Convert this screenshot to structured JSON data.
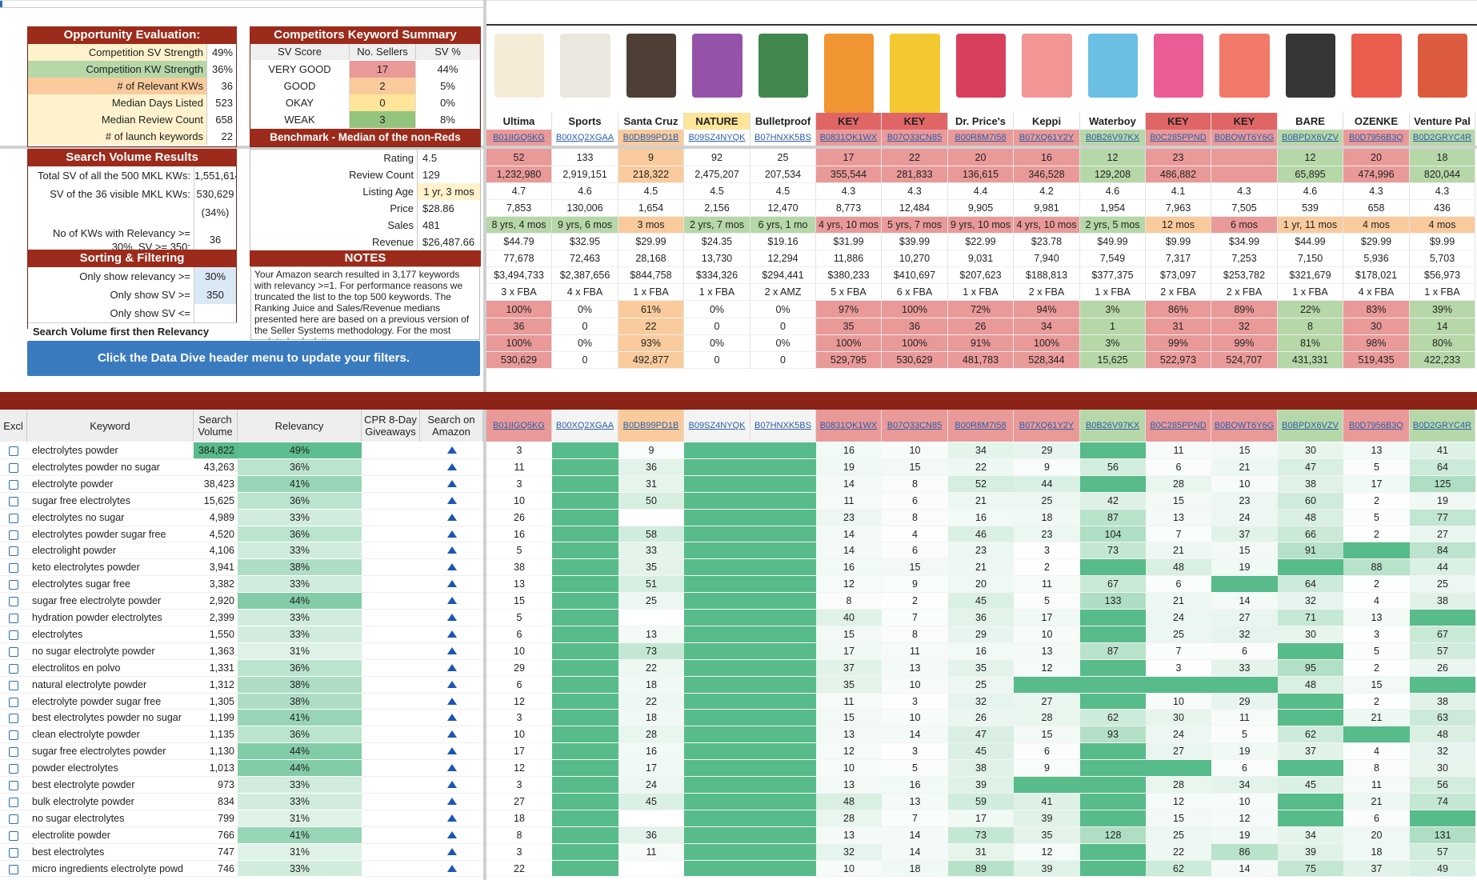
{
  "opportunity": {
    "title": "Opportunity Evaluation:",
    "rows": [
      {
        "label": "Competition SV Strength",
        "value": "49%"
      },
      {
        "label": "Competition KW Strength",
        "value": "36%"
      },
      {
        "label": "# of Relevant KWs",
        "value": "36"
      },
      {
        "label": "Median Days Listed",
        "value": "523"
      },
      {
        "label": "Median Review Count",
        "value": "658"
      },
      {
        "label": "# of launch keywords",
        "value": "22"
      }
    ]
  },
  "competitors_summary": {
    "title": "Competitors Keyword Summary",
    "headers": [
      "SV Score",
      "No. Sellers",
      "SV %"
    ],
    "rows": [
      [
        "VERY GOOD",
        "17",
        "44%"
      ],
      [
        "GOOD",
        "2",
        "5%"
      ],
      [
        "OKAY",
        "0",
        "0%"
      ],
      [
        "WEAK",
        "3",
        "8%"
      ]
    ],
    "benchmark_title": "Benchmark - Median of the non-Reds",
    "benchmark_rows": [
      {
        "label": "Rating",
        "value": "4.5"
      },
      {
        "label": "Review Count",
        "value": "129"
      },
      {
        "label": "Listing Age",
        "value": "1 yr, 3 mos"
      },
      {
        "label": "Price",
        "value": "$28.86"
      },
      {
        "label": "Sales",
        "value": "481"
      },
      {
        "label": "Revenue",
        "value": "$26,487.66"
      }
    ],
    "notes_title": "NOTES",
    "notes_text": "Your Amazon search resulted in 3,177 keywords with relevancy >=1. For performance reasons we truncated the list to the top 500 keywords. The Ranking Juice and Sales/Revenue medians presented here are based on a previous version of the Seller Systems methodology. For the most updated calculation"
  },
  "search_volume": {
    "title": "Search Volume Results",
    "rows": [
      {
        "label": "Total SV of all the 500 MKL KWs:",
        "value": "1,551,614"
      },
      {
        "label": "SV of the 36 visible MKL KWs:",
        "value": "530,629"
      },
      {
        "label": "",
        "value": "(34%)"
      },
      {
        "label": "No of KWs with Relevancy >= 30%, SV >= 350:",
        "value": "36"
      }
    ]
  },
  "sorting": {
    "title": "Sorting & Filtering",
    "rows": [
      {
        "label": "Only show relevancy >=",
        "value": "30%"
      },
      {
        "label": "Only show SV >=",
        "value": "350"
      },
      {
        "label": "Only show SV <=",
        "value": ""
      }
    ],
    "sort_label": "Search Volume first then Relevancy",
    "button_label": "Click the Data Dive header menu to update your filters."
  },
  "products": [
    {
      "brand": "Ultima",
      "asin": "B01IIGQ5KG",
      "img": "#f3ead2",
      "hc": "#fff",
      "rating": "52",
      "reviews": "1,232,980",
      "r3": "4.7",
      "r4": "7,853",
      "age": "8 yrs, 4 mos",
      "price": "$44.79",
      "r7": "77,678",
      "rev": "$3,494,733",
      "ful": "3 x FBA",
      "p1": "100%",
      "p2": "36",
      "p3": "100%",
      "p4": "530,629",
      "col": "#ea9999"
    },
    {
      "brand": "Sports",
      "asin": "B00XQ2XGAA",
      "img": "#e9e4dc",
      "hc": "#fff",
      "rating": "133",
      "reviews": "2,919,151",
      "r3": "4.6",
      "r4": "130,006",
      "age": "9 yrs, 6 mos",
      "price": "$32.95",
      "r7": "72,463",
      "rev": "$2,387,656",
      "ful": "4 x FBA",
      "p1": "0%",
      "p2": "0",
      "p3": "0%",
      "p4": "0",
      "col": "#ffffff"
    },
    {
      "brand": "Santa Cruz",
      "asin": "B0DB99PD1B",
      "img": "#3a2a20",
      "hc": "#fff",
      "rating": "9",
      "reviews": "218,322",
      "r3": "4.5",
      "r4": "1,654",
      "age": "3 mos",
      "price": "$29.99",
      "r7": "28,168",
      "rev": "$844,758",
      "ful": "1 x FBA",
      "p1": "61%",
      "p2": "22",
      "p3": "93%",
      "p4": "492,877",
      "col": "#f9cb9c"
    },
    {
      "brand": "NATURE",
      "asin": "B09SZ4NYQK",
      "img": "#8a3fa0",
      "hc": "#ffe599",
      "rating": "92",
      "reviews": "2,475,207",
      "r3": "4.5",
      "r4": "2,156",
      "age": "2 yrs, 7 mos",
      "price": "$24.35",
      "r7": "13,730",
      "rev": "$334,326",
      "ful": "1 x FBA",
      "p1": "0%",
      "p2": "0",
      "p3": "0%",
      "p4": "0",
      "col": "#ffffff"
    },
    {
      "brand": "Bulletproof",
      "asin": "B07HNXK5BS",
      "img": "#2e7a3a",
      "hc": "#fff",
      "rating": "25",
      "reviews": "207,534",
      "r3": "4.5",
      "r4": "12,470",
      "age": "6 yrs, 1 mo",
      "price": "$19.16",
      "r7": "12,294",
      "rev": "$294,441",
      "ful": "2 x AMZ",
      "p1": "0%",
      "p2": "0",
      "p3": "0%",
      "p4": "0",
      "col": "#ffffff"
    },
    {
      "brand": "KEY",
      "asin": "B0831QK1WX",
      "img": "#f08a1c",
      "hc": "#e06666",
      "rating": "17",
      "reviews": "355,544",
      "r3": "4.3",
      "r4": "8,773",
      "age": "4 yrs, 10 mos",
      "price": "$31.99",
      "r7": "11,886",
      "rev": "$380,233",
      "ful": "5 x FBA",
      "p1": "97%",
      "p2": "35",
      "p3": "100%",
      "p4": "529,795",
      "col": "#ea9999"
    },
    {
      "brand": "KEY",
      "asin": "B07Q33CN85",
      "img": "#f2c21a",
      "hc": "#e06666",
      "rating": "22",
      "reviews": "281,833",
      "r3": "4.3",
      "r4": "12,484",
      "age": "5 yrs, 7 mos",
      "price": "$39.99",
      "r7": "10,270",
      "rev": "$410,697",
      "ful": "6 x FBA",
      "p1": "100%",
      "p2": "36",
      "p3": "100%",
      "p4": "530,629",
      "col": "#ea9999"
    },
    {
      "brand": "Dr. Price's",
      "asin": "B00R8M7I58",
      "img": "#d42a4a",
      "hc": "#fff",
      "rating": "20",
      "reviews": "136,615",
      "r3": "4.4",
      "r4": "9,905",
      "age": "9 yrs, 10 mos",
      "price": "$22.99",
      "r7": "9,031",
      "rev": "$207,623",
      "ful": "1 x FBA",
      "p1": "72%",
      "p2": "26",
      "p3": "91%",
      "p4": "481,783",
      "col": "#ea9999"
    },
    {
      "brand": "Keppi",
      "asin": "B07XQ61Y2Y",
      "img": "#f08a8a",
      "hc": "#fff",
      "rating": "16",
      "reviews": "346,528",
      "r3": "4.2",
      "r4": "9,981",
      "age": "4 yrs, 10 mos",
      "price": "$23.78",
      "r7": "7,940",
      "rev": "$188,813",
      "ful": "2 x FBA",
      "p1": "94%",
      "p2": "34",
      "p3": "100%",
      "p4": "528,344",
      "col": "#ea9999"
    },
    {
      "brand": "Waterboy",
      "asin": "B0B26V97KX",
      "img": "#5ab8e0",
      "hc": "#fff",
      "rating": "12",
      "reviews": "129,208",
      "r3": "4.6",
      "r4": "1,954",
      "age": "2 yrs, 5 mos",
      "price": "$49.99",
      "r7": "7,549",
      "rev": "$377,375",
      "ful": "1 x FBA",
      "p1": "3%",
      "p2": "1",
      "p3": "3%",
      "p4": "15,625",
      "col": "#b6d7a8"
    },
    {
      "brand": "KEY",
      "asin": "B0C285PPND",
      "img": "#e84a8a",
      "hc": "#e06666",
      "rating": "23",
      "reviews": "486,882",
      "r3": "4.1",
      "r4": "7,963",
      "age": "12 mos",
      "price": "$9.99",
      "r7": "7,317",
      "rev": "$73,097",
      "ful": "2 x FBA",
      "p1": "86%",
      "p2": "31",
      "p3": "99%",
      "p4": "522,973",
      "col": "#ea9999"
    },
    {
      "brand": "KEY",
      "asin": "B0BQWT6Y6G",
      "img": "#f06a5a",
      "hc": "#e06666",
      "rating": "",
      "reviews": "",
      "r3": "4.3",
      "r4": "7,505",
      "age": "6 mos",
      "price": "$34.99",
      "r7": "7,253",
      "rev": "$253,782",
      "ful": "2 x FBA",
      "p1": "89%",
      "p2": "32",
      "p3": "99%",
      "p4": "524,707",
      "col": "#ea9999"
    },
    {
      "brand": "BARE",
      "asin": "B0BPDX6VZV",
      "img": "#202020",
      "hc": "#fff",
      "rating": "12",
      "reviews": "65,895",
      "r3": "4.6",
      "r4": "539",
      "age": "1 yr, 11 mos",
      "price": "$44.99",
      "r7": "7,150",
      "rev": "$321,679",
      "ful": "1 x FBA",
      "p1": "22%",
      "p2": "8",
      "p3": "81%",
      "p4": "431,331",
      "col": "#b6d7a8"
    },
    {
      "brand": "OZENKE",
      "asin": "B0D7956B3Q",
      "img": "#e84a3a",
      "hc": "#fff",
      "rating": "20",
      "reviews": "474,996",
      "r3": "4.3",
      "r4": "658",
      "age": "4 mos",
      "price": "$29.99",
      "r7": "5,936",
      "rev": "$178,021",
      "ful": "4 x FBA",
      "p1": "83%",
      "p2": "30",
      "p3": "98%",
      "p4": "519,435",
      "col": "#ea9999"
    },
    {
      "brand": "Venture Pal",
      "asin": "B0D2GRYC4R",
      "img": "#d94a2a",
      "hc": "#fff",
      "rating": "18",
      "reviews": "820,044",
      "r3": "4.3",
      "r4": "436",
      "age": "4 mos",
      "price": "$9.99",
      "r7": "5,703",
      "rev": "$56,973",
      "ful": "1 x FBA",
      "p1": "39%",
      "p2": "14",
      "p3": "80%",
      "p4": "422,233",
      "col": "#b6d7a8"
    }
  ],
  "kw_table": {
    "headers": {
      "excl": "Excl",
      "keyword": "Keyword",
      "sv": "Search Volume",
      "rel": "Relevancy",
      "cpr": "CPR 8-Day Giveaways",
      "amazon": "Search on Amazon"
    },
    "rows": [
      {
        "kw": "electrolytes powder",
        "sv": "384,822",
        "rel": "49%",
        "vals": [
          "3",
          "",
          "9",
          "",
          "",
          "16",
          "10",
          "34",
          "29",
          "",
          "11",
          "15",
          "30",
          "13",
          "41"
        ]
      },
      {
        "kw": "electrolytes powder no sugar",
        "sv": "43,263",
        "rel": "36%",
        "vals": [
          "11",
          "",
          "36",
          "",
          "",
          "19",
          "15",
          "22",
          "9",
          "56",
          "6",
          "21",
          "47",
          "5",
          "64"
        ]
      },
      {
        "kw": "electrolyte powder",
        "sv": "38,423",
        "rel": "41%",
        "vals": [
          "3",
          "",
          "31",
          "",
          "",
          "14",
          "8",
          "52",
          "44",
          "",
          "28",
          "10",
          "38",
          "17",
          "125"
        ]
      },
      {
        "kw": "sugar free electrolytes",
        "sv": "15,625",
        "rel": "36%",
        "vals": [
          "10",
          "",
          "50",
          "",
          "",
          "11",
          "6",
          "21",
          "25",
          "42",
          "15",
          "23",
          "60",
          "2",
          "19"
        ]
      },
      {
        "kw": "electrolytes no sugar",
        "sv": "4,989",
        "rel": "33%",
        "vals": [
          "26",
          "",
          "",
          "",
          "",
          "23",
          "8",
          "16",
          "18",
          "87",
          "13",
          "24",
          "48",
          "5",
          "77"
        ]
      },
      {
        "kw": "electrolytes powder sugar free",
        "sv": "4,520",
        "rel": "36%",
        "vals": [
          "16",
          "",
          "58",
          "",
          "",
          "14",
          "4",
          "46",
          "23",
          "104",
          "7",
          "37",
          "66",
          "2",
          "27"
        ]
      },
      {
        "kw": "electrolight powder",
        "sv": "4,106",
        "rel": "33%",
        "vals": [
          "5",
          "",
          "33",
          "",
          "",
          "14",
          "6",
          "23",
          "3",
          "73",
          "21",
          "15",
          "91",
          "",
          "84"
        ]
      },
      {
        "kw": "keto electrolytes powder",
        "sv": "3,941",
        "rel": "38%",
        "vals": [
          "38",
          "",
          "35",
          "",
          "",
          "16",
          "15",
          "21",
          "2",
          "",
          "48",
          "19",
          "",
          "88",
          "44"
        ]
      },
      {
        "kw": "electrolytes sugar free",
        "sv": "3,382",
        "rel": "33%",
        "vals": [
          "13",
          "",
          "51",
          "",
          "",
          "12",
          "9",
          "20",
          "11",
          "67",
          "6",
          "",
          "64",
          "2",
          "25"
        ]
      },
      {
        "kw": "sugar free electrolyte powder",
        "sv": "2,920",
        "rel": "44%",
        "vals": [
          "15",
          "",
          "25",
          "",
          "",
          "8",
          "2",
          "45",
          "5",
          "133",
          "21",
          "14",
          "32",
          "4",
          "38"
        ]
      },
      {
        "kw": "hydration powder electrolytes",
        "sv": "2,399",
        "rel": "33%",
        "vals": [
          "5",
          "",
          "",
          "",
          "",
          "40",
          "7",
          "36",
          "17",
          "",
          "24",
          "27",
          "71",
          "13",
          ""
        ]
      },
      {
        "kw": "electrolytes",
        "sv": "1,550",
        "rel": "33%",
        "vals": [
          "6",
          "",
          "13",
          "",
          "",
          "15",
          "8",
          "29",
          "10",
          "",
          "25",
          "32",
          "30",
          "3",
          "67"
        ]
      },
      {
        "kw": "no sugar electrolyte powder",
        "sv": "1,363",
        "rel": "31%",
        "vals": [
          "10",
          "",
          "73",
          "",
          "",
          "17",
          "11",
          "16",
          "13",
          "87",
          "7",
          "6",
          "",
          "5",
          "57"
        ]
      },
      {
        "kw": "electrolitos en polvo",
        "sv": "1,331",
        "rel": "36%",
        "vals": [
          "29",
          "",
          "22",
          "",
          "",
          "37",
          "13",
          "35",
          "12",
          "",
          "3",
          "33",
          "95",
          "2",
          "26"
        ]
      },
      {
        "kw": "natural electrolyte powder",
        "sv": "1,312",
        "rel": "38%",
        "vals": [
          "6",
          "",
          "18",
          "",
          "",
          "35",
          "10",
          "25",
          "",
          "",
          "",
          "",
          "48",
          "15",
          ""
        ]
      },
      {
        "kw": "electrolyte powder sugar free",
        "sv": "1,305",
        "rel": "38%",
        "vals": [
          "12",
          "",
          "22",
          "",
          "",
          "11",
          "3",
          "32",
          "27",
          "",
          "10",
          "29",
          "",
          "2",
          "38"
        ]
      },
      {
        "kw": "best electrolytes powder no sugar",
        "sv": "1,199",
        "rel": "41%",
        "vals": [
          "3",
          "",
          "18",
          "",
          "",
          "15",
          "10",
          "26",
          "28",
          "62",
          "30",
          "11",
          "",
          "21",
          "63"
        ]
      },
      {
        "kw": "clean electrolyte powder",
        "sv": "1,135",
        "rel": "36%",
        "vals": [
          "10",
          "",
          "28",
          "",
          "",
          "13",
          "14",
          "47",
          "15",
          "93",
          "24",
          "5",
          "62",
          "",
          "48"
        ]
      },
      {
        "kw": "sugar free electrolytes powder",
        "sv": "1,130",
        "rel": "44%",
        "vals": [
          "17",
          "",
          "16",
          "",
          "",
          "12",
          "3",
          "45",
          "6",
          "",
          "27",
          "19",
          "37",
          "4",
          "32"
        ]
      },
      {
        "kw": "powder electrolytes",
        "sv": "1,013",
        "rel": "44%",
        "vals": [
          "12",
          "",
          "17",
          "",
          "",
          "10",
          "5",
          "38",
          "9",
          "",
          "",
          "6",
          "",
          "8",
          "30"
        ]
      },
      {
        "kw": "best electrolyte powder",
        "sv": "973",
        "rel": "33%",
        "vals": [
          "3",
          "",
          "24",
          "",
          "",
          "13",
          "16",
          "39",
          "",
          "",
          "28",
          "34",
          "45",
          "11",
          "56"
        ]
      },
      {
        "kw": "bulk electrolyte powder",
        "sv": "834",
        "rel": "33%",
        "vals": [
          "27",
          "",
          "45",
          "",
          "",
          "48",
          "13",
          "59",
          "41",
          "",
          "12",
          "10",
          "",
          "21",
          "74"
        ]
      },
      {
        "kw": "no sugar electrolytes",
        "sv": "799",
        "rel": "31%",
        "vals": [
          "18",
          "",
          "",
          "",
          "",
          "28",
          "7",
          "17",
          "39",
          "",
          "15",
          "12",
          "",
          "6",
          ""
        ]
      },
      {
        "kw": "electrolite powder",
        "sv": "766",
        "rel": "41%",
        "vals": [
          "8",
          "",
          "36",
          "",
          "",
          "13",
          "14",
          "73",
          "35",
          "128",
          "25",
          "19",
          "34",
          "20",
          "131"
        ]
      },
      {
        "kw": "best electrolytes",
        "sv": "747",
        "rel": "31%",
        "vals": [
          "3",
          "",
          "11",
          "",
          "",
          "32",
          "14",
          "31",
          "12",
          "",
          "22",
          "86",
          "39",
          "18",
          "57"
        ]
      },
      {
        "kw": "micro ingredients electrolyte powd",
        "sv": "746",
        "rel": "33%",
        "vals": [
          "22",
          "",
          "",
          "",
          "",
          "10",
          "18",
          "89",
          "39",
          "",
          "62",
          "14",
          "75",
          "37",
          "49"
        ]
      }
    ]
  }
}
